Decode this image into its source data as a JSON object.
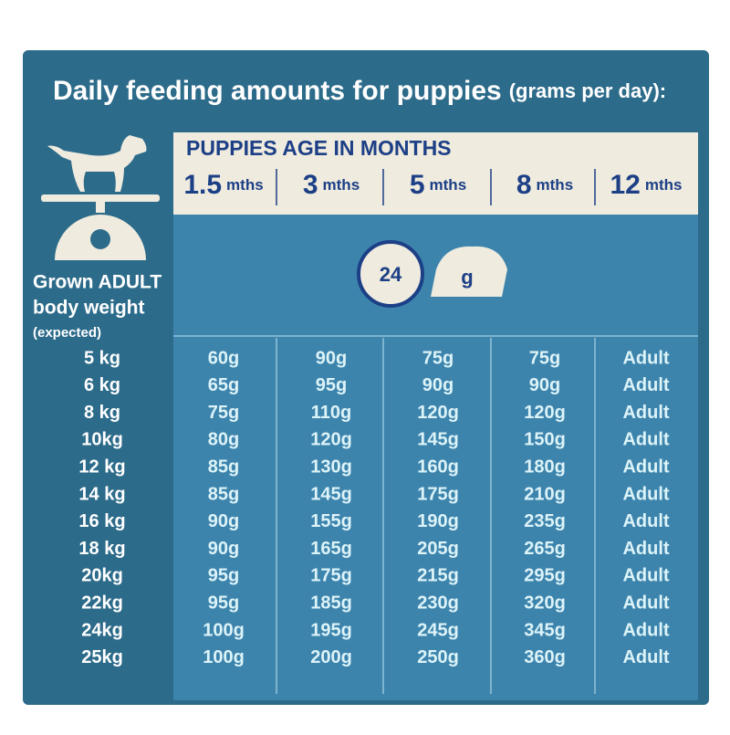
{
  "title": "Daily feeding amounts for puppies",
  "title_note": "(grams per day):",
  "header": {
    "label": "PUPPIES AGE IN MONTHS",
    "columns": [
      {
        "num": "1.5",
        "unit": "mths"
      },
      {
        "num": "3",
        "unit": "mths"
      },
      {
        "num": "5",
        "unit": "mths"
      },
      {
        "num": "8",
        "unit": "mths"
      },
      {
        "num": "12",
        "unit": "mths"
      }
    ]
  },
  "icons": {
    "clock": "24",
    "bowl": "g"
  },
  "row_header": {
    "line1": "Grown ADULT",
    "line2": "body weight",
    "line3": "(expected)"
  },
  "rows": [
    {
      "weight": "5 kg",
      "cells": [
        "60g",
        "90g",
        "75g",
        "75g",
        "Adult"
      ]
    },
    {
      "weight": "6 kg",
      "cells": [
        "65g",
        "95g",
        "90g",
        "90g",
        "Adult"
      ]
    },
    {
      "weight": "8 kg",
      "cells": [
        "75g",
        "110g",
        "120g",
        "120g",
        "Adult"
      ]
    },
    {
      "weight": "10kg",
      "cells": [
        "80g",
        "120g",
        "145g",
        "150g",
        "Adult"
      ]
    },
    {
      "weight": "12 kg",
      "cells": [
        "85g",
        "130g",
        "160g",
        "180g",
        "Adult"
      ]
    },
    {
      "weight": "14 kg",
      "cells": [
        "85g",
        "145g",
        "175g",
        "210g",
        "Adult"
      ]
    },
    {
      "weight": "16 kg",
      "cells": [
        "90g",
        "155g",
        "190g",
        "235g",
        "Adult"
      ]
    },
    {
      "weight": "18 kg",
      "cells": [
        "90g",
        "165g",
        "205g",
        "265g",
        "Adult"
      ]
    },
    {
      "weight": "20kg",
      "cells": [
        "95g",
        "175g",
        "215g",
        "295g",
        "Adult"
      ]
    },
    {
      "weight": "22kg",
      "cells": [
        "95g",
        "185g",
        "230g",
        "320g",
        "Adult"
      ]
    },
    {
      "weight": "24kg",
      "cells": [
        "100g",
        "195g",
        "245g",
        "345g",
        "Adult"
      ]
    },
    {
      "weight": "25kg",
      "cells": [
        "100g",
        "200g",
        "250g",
        "360g",
        "Adult"
      ]
    }
  ]
}
